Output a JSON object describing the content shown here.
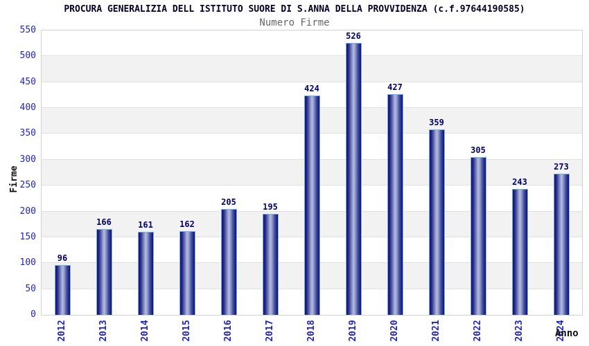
{
  "chart_data": {
    "type": "bar",
    "title": "PROCURA GENERALIZIA DELL ISTITUTO SUORE DI S.ANNA DELLA PROVVIDENZA (c.f.97644190585)",
    "subtitle": "Numero Firme",
    "xlabel": "Anno",
    "ylabel": "Firme",
    "categories": [
      "2012",
      "2013",
      "2014",
      "2015",
      "2016",
      "2017",
      "2018",
      "2019",
      "2020",
      "2021",
      "2022",
      "2023",
      "2024"
    ],
    "values": [
      96,
      166,
      161,
      162,
      205,
      195,
      424,
      526,
      427,
      359,
      305,
      243,
      273
    ],
    "ylim": [
      0,
      550
    ],
    "ytick_step": 50,
    "grid": true,
    "legend": "none",
    "colors": {
      "tick_label": "#2222cc",
      "value_label": "#00006a",
      "title": "#000028",
      "subtitle": "#666666",
      "axis_label": "#111111",
      "band_light": "#ffffff",
      "band_dark": "#f2f2f2",
      "grid_line": "#e0e0e0",
      "plot_border": "#d2d2d2",
      "bar_dark": "#101070",
      "bar_mid": "#454d9e",
      "bar_light": "#b4bce2",
      "bar_outline": "#74b2f0"
    }
  }
}
